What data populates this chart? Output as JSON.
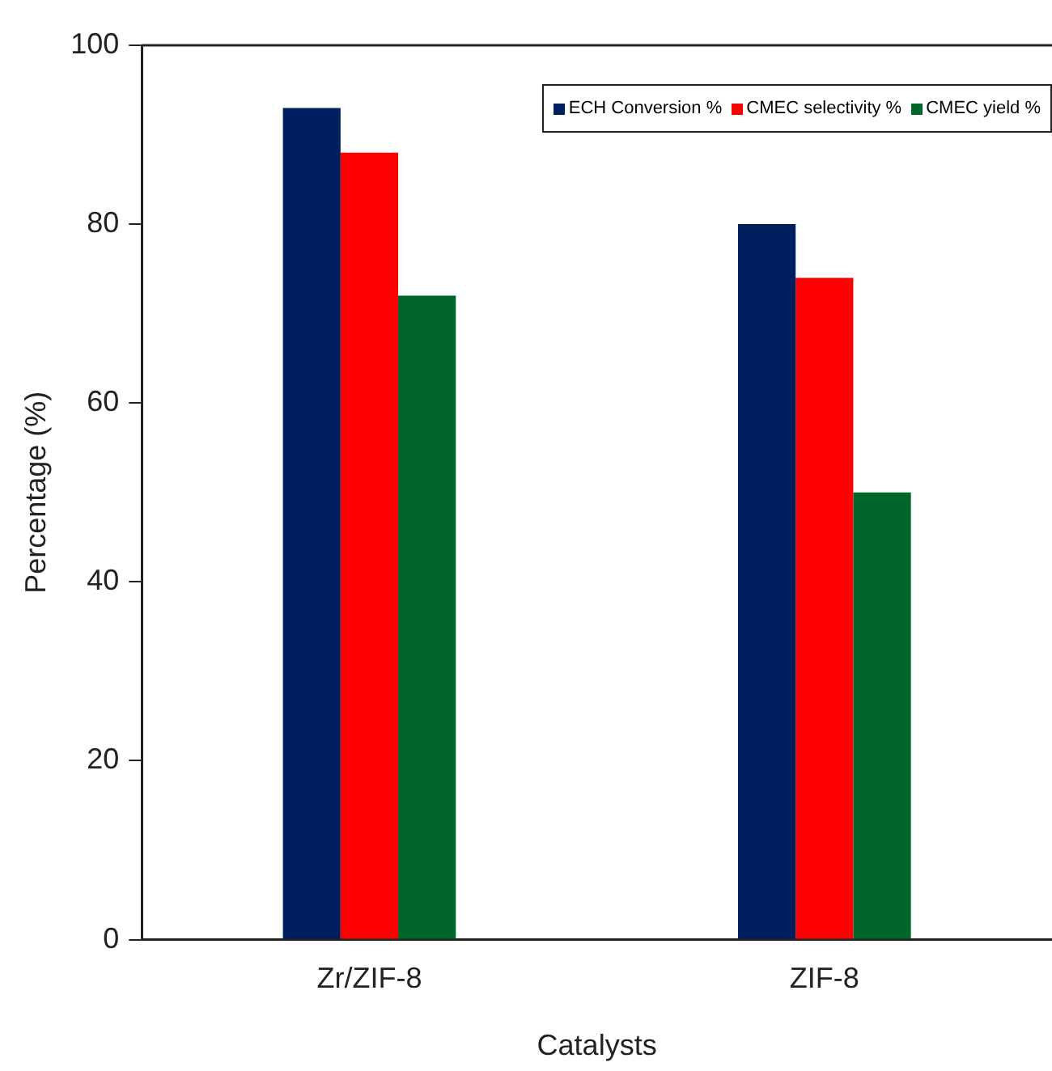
{
  "chart_data": {
    "type": "bar",
    "xlabel": "Catalysts",
    "ylabel": "Percentage (%)",
    "categories": [
      "Zr/ZIF-8",
      "ZIF-8"
    ],
    "series": [
      {
        "name": "ECH Conversion %",
        "color": "#001f5f",
        "values": [
          93,
          80
        ]
      },
      {
        "name": "CMEC selectivity %",
        "color": "#ff0000",
        "values": [
          88,
          74
        ]
      },
      {
        "name": "CMEC yield %",
        "color": "#00662a",
        "values": [
          72,
          50
        ]
      }
    ],
    "ylim": [
      0,
      100
    ],
    "yticks": [
      0,
      20,
      40,
      60,
      80,
      100
    ],
    "grid": false,
    "legend": "top right"
  }
}
